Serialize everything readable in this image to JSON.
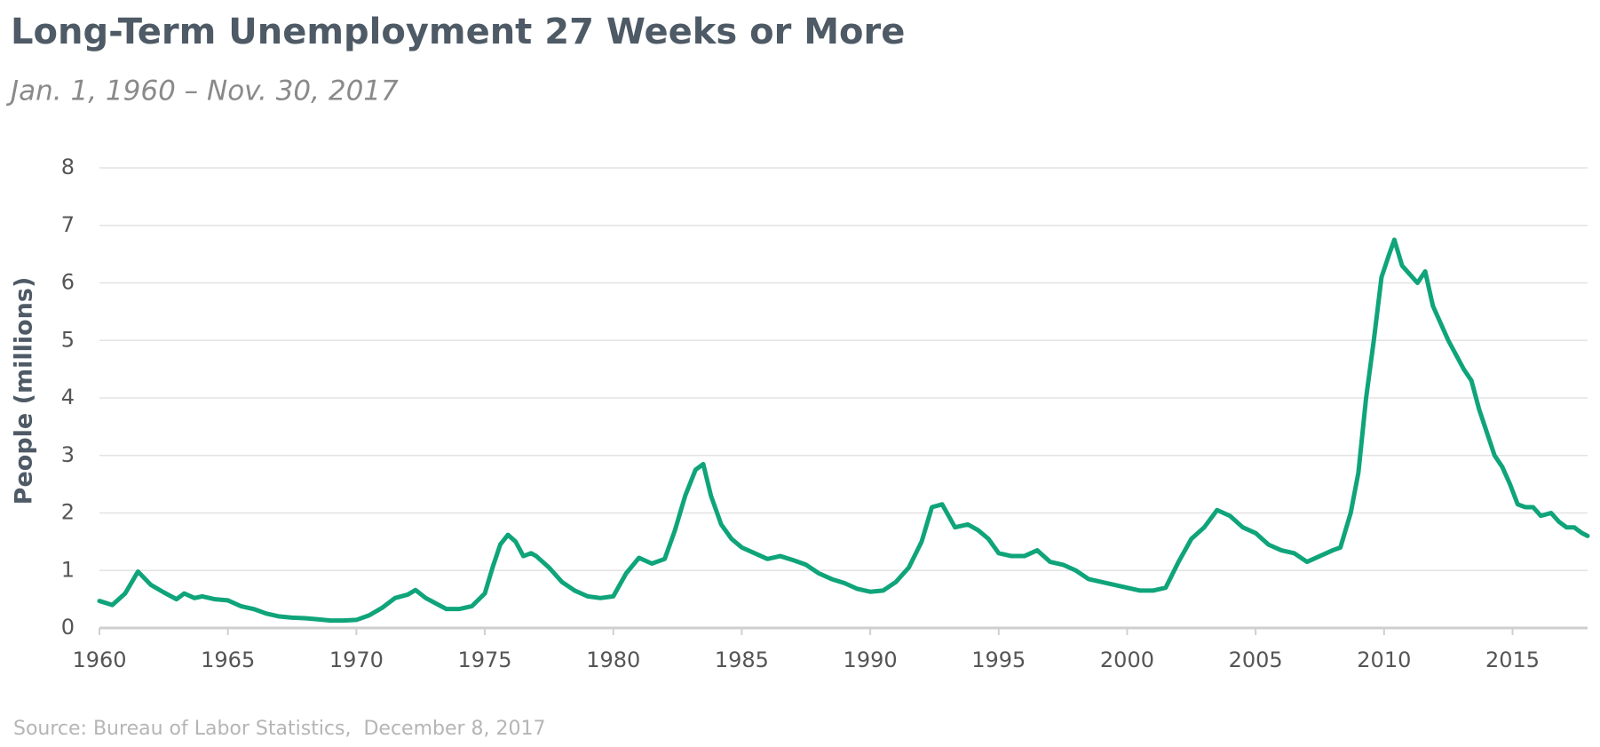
{
  "chart_data": {
    "type": "line",
    "title": "Long-Term Unemployment 27 Weeks or More",
    "subtitle": "Jan. 1, 1960 – Nov. 30, 2017",
    "y_label": "People (millions)",
    "source": "Source: Bureau of Labor Statistics,  December 8, 2017",
    "x": [
      1960,
      1960.5,
      1961,
      1961.5,
      1962,
      1962.5,
      1963,
      1963.3,
      1963.7,
      1964,
      1964.5,
      1965,
      1965.5,
      1966,
      1966.5,
      1967,
      1967.5,
      1968,
      1968.5,
      1969,
      1969.5,
      1970,
      1970.5,
      1971,
      1971.5,
      1972,
      1972.3,
      1972.7,
      1973,
      1973.5,
      1974,
      1974.5,
      1975,
      1975.3,
      1975.6,
      1975.9,
      1976.2,
      1976.5,
      1976.8,
      1977,
      1977.5,
      1978,
      1978.5,
      1979,
      1979.5,
      1980,
      1980.5,
      1981,
      1981.5,
      1982,
      1982.4,
      1982.8,
      1983.2,
      1983.5,
      1983.8,
      1984.2,
      1984.6,
      1985,
      1985.5,
      1986,
      1986.5,
      1987,
      1987.5,
      1988,
      1988.5,
      1989,
      1989.5,
      1990,
      1990.5,
      1991,
      1991.5,
      1992,
      1992.4,
      1992.8,
      1993.3,
      1993.8,
      1994.2,
      1994.6,
      1995,
      1995.5,
      1996,
      1996.5,
      1997,
      1997.5,
      1998,
      1998.5,
      1999,
      1999.5,
      2000,
      2000.5,
      2001,
      2001.5,
      2002,
      2002.5,
      2003,
      2003.5,
      2004,
      2004.5,
      2005,
      2005.5,
      2006,
      2006.5,
      2007,
      2007.5,
      2008,
      2008.3,
      2008.7,
      2009,
      2009.3,
      2009.6,
      2009.9,
      2010.2,
      2010.4,
      2010.7,
      2011,
      2011.3,
      2011.6,
      2011.9,
      2012.2,
      2012.5,
      2012.8,
      2013.1,
      2013.4,
      2013.7,
      2014,
      2014.3,
      2014.6,
      2014.9,
      2015.2,
      2015.5,
      2015.8,
      2016.1,
      2016.5,
      2016.8,
      2017.1,
      2017.4,
      2017.7,
      2017.92
    ],
    "values": [
      0.47,
      0.4,
      0.6,
      0.98,
      0.75,
      0.62,
      0.5,
      0.6,
      0.52,
      0.55,
      0.5,
      0.48,
      0.38,
      0.33,
      0.25,
      0.2,
      0.18,
      0.17,
      0.15,
      0.13,
      0.13,
      0.14,
      0.22,
      0.35,
      0.52,
      0.58,
      0.66,
      0.52,
      0.45,
      0.33,
      0.33,
      0.38,
      0.6,
      1.05,
      1.45,
      1.62,
      1.5,
      1.25,
      1.3,
      1.25,
      1.05,
      0.8,
      0.65,
      0.55,
      0.52,
      0.55,
      0.95,
      1.22,
      1.12,
      1.2,
      1.7,
      2.3,
      2.75,
      2.85,
      2.3,
      1.8,
      1.55,
      1.4,
      1.3,
      1.2,
      1.25,
      1.18,
      1.1,
      0.95,
      0.85,
      0.78,
      0.68,
      0.63,
      0.65,
      0.8,
      1.05,
      1.5,
      2.1,
      2.15,
      1.75,
      1.8,
      1.7,
      1.55,
      1.3,
      1.25,
      1.25,
      1.35,
      1.15,
      1.1,
      1.0,
      0.85,
      0.8,
      0.75,
      0.7,
      0.65,
      0.65,
      0.7,
      1.15,
      1.55,
      1.75,
      2.05,
      1.95,
      1.75,
      1.65,
      1.45,
      1.35,
      1.3,
      1.15,
      1.25,
      1.35,
      1.4,
      2.0,
      2.7,
      4.0,
      5.0,
      6.1,
      6.5,
      6.75,
      6.3,
      6.15,
      6.0,
      6.2,
      5.6,
      5.3,
      5.0,
      4.75,
      4.5,
      4.3,
      3.8,
      3.4,
      3.0,
      2.8,
      2.5,
      2.15,
      2.1,
      2.1,
      1.95,
      2.0,
      1.85,
      1.75,
      1.75,
      1.65,
      1.6
    ],
    "color": "#0fa47a",
    "xlim": [
      1960,
      2017.92
    ],
    "xticks": [
      1960,
      1965,
      1970,
      1975,
      1980,
      1985,
      1990,
      1995,
      2000,
      2005,
      2010,
      2015
    ],
    "ylim": [
      0,
      8
    ],
    "yticks": [
      0,
      1,
      2,
      3,
      4,
      5,
      6,
      7,
      8
    ],
    "grid": true
  }
}
